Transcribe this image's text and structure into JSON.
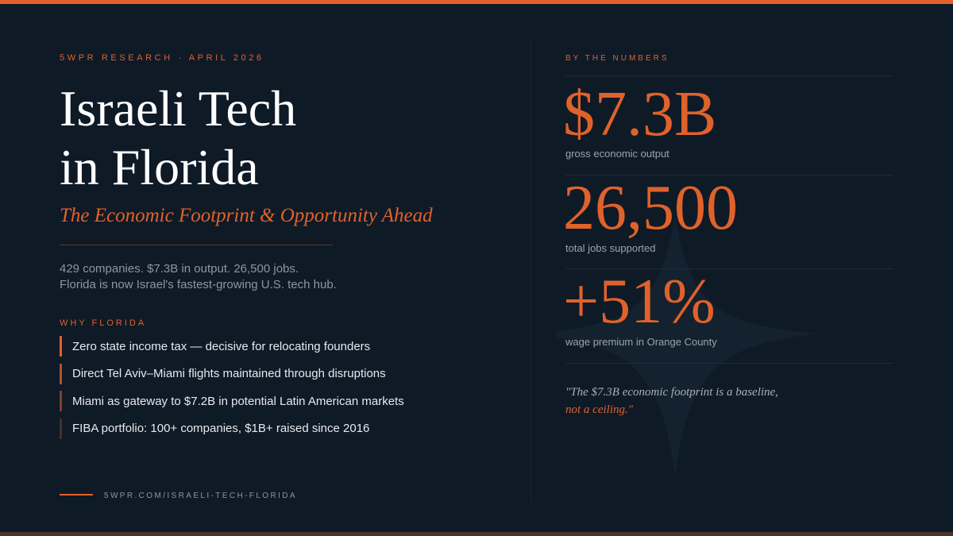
{
  "header": {
    "eyebrow": "5WPR RESEARCH · APRIL 2026",
    "title_line1": "Israeli Tech",
    "title_line2": "in Florida",
    "subtitle": "The Economic Footprint & Opportunity Ahead"
  },
  "summary": {
    "line1": "429 companies. $7.3B in output. 26,500 jobs.",
    "line2": "Florida is now Israel's fastest-growing U.S. tech hub."
  },
  "why_florida": {
    "label": "WHY FLORIDA",
    "points": [
      "Zero state income tax — decisive for relocating founders",
      "Direct Tel Aviv–Miami flights maintained through disruptions",
      "Miami as gateway to $7.2B in potential Latin American markets",
      "FIBA portfolio: 100+ companies, $1B+ raised since 2016"
    ]
  },
  "footer": {
    "url": "5WPR.COM/ISRAELI-TECH-FLORIDA"
  },
  "numbers": {
    "label": "BY THE NUMBERS",
    "stats": [
      {
        "value": "$7.3B",
        "caption": "gross economic output"
      },
      {
        "value": "26,500",
        "caption": "total jobs supported"
      },
      {
        "value": "+51%",
        "caption": "wage premium in Orange County"
      }
    ]
  },
  "quote": {
    "line1": "\"The $7.3B economic footprint is a baseline,",
    "line2": "not a ceiling.\""
  },
  "colors": {
    "background": "#0f1a27",
    "accent": "#e0622a",
    "text": "#ffffff",
    "muted": "#8c96a3"
  }
}
